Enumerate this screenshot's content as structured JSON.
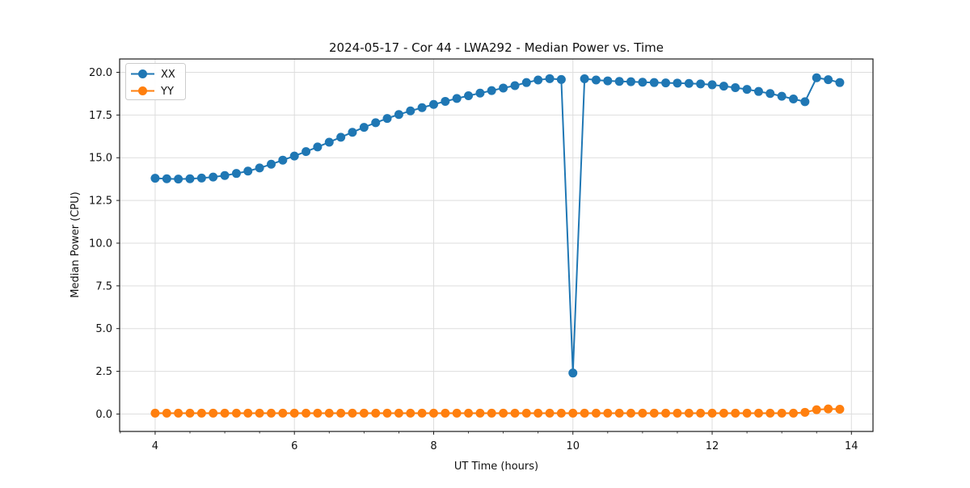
{
  "chart_data": {
    "type": "line",
    "title": "2024-05-17 - Cor 44 - LWA292 - Median Power vs. Time",
    "xlabel": "UT Time (hours)",
    "ylabel": "Median Power (CPU)",
    "xlim": [
      3.49,
      14.31
    ],
    "ylim": [
      -1.02,
      20.78
    ],
    "grid": true,
    "legend_position": "upper left",
    "x_tick_values": [
      4,
      6,
      8,
      10,
      12,
      14
    ],
    "x_tick_labels": [
      "4",
      "6",
      "8",
      "10",
      "12",
      "14"
    ],
    "x_minor_tick_step": 0.5,
    "y_tick_values": [
      0.0,
      2.5,
      5.0,
      7.5,
      10.0,
      12.5,
      15.0,
      17.5,
      20.0
    ],
    "y_tick_labels": [
      "0.0",
      "2.5",
      "5.0",
      "7.5",
      "10.0",
      "12.5",
      "15.0",
      "17.5",
      "20.0"
    ],
    "x": [
      4.0,
      4.167,
      4.333,
      4.5,
      4.667,
      4.833,
      5.0,
      5.167,
      5.333,
      5.5,
      5.667,
      5.833,
      6.0,
      6.167,
      6.333,
      6.5,
      6.667,
      6.833,
      7.0,
      7.167,
      7.333,
      7.5,
      7.667,
      7.833,
      8.0,
      8.167,
      8.333,
      8.5,
      8.667,
      8.833,
      9.0,
      9.167,
      9.333,
      9.5,
      9.667,
      9.833,
      10.0,
      10.167,
      10.333,
      10.5,
      10.667,
      10.833,
      11.0,
      11.167,
      11.333,
      11.5,
      11.667,
      11.833,
      12.0,
      12.167,
      12.333,
      12.5,
      12.667,
      12.833,
      13.0,
      13.167,
      13.333,
      13.5,
      13.667,
      13.833
    ],
    "series": [
      {
        "name": "XX",
        "color": "#1f77b4",
        "values": [
          13.8,
          13.77,
          13.75,
          13.77,
          13.81,
          13.87,
          13.96,
          14.08,
          14.22,
          14.4,
          14.62,
          14.86,
          15.1,
          15.36,
          15.63,
          15.91,
          16.2,
          16.49,
          16.78,
          17.05,
          17.3,
          17.53,
          17.74,
          17.93,
          18.12,
          18.3,
          18.47,
          18.63,
          18.78,
          18.93,
          19.08,
          19.22,
          19.4,
          19.55,
          19.63,
          19.58,
          2.4,
          19.62,
          19.55,
          19.5,
          19.47,
          19.45,
          19.42,
          19.4,
          19.38,
          19.37,
          19.35,
          19.32,
          19.27,
          19.19,
          19.1,
          19.0,
          18.88,
          18.76,
          18.6,
          18.44,
          18.28,
          19.68,
          19.57,
          19.4
        ]
      },
      {
        "name": "YY",
        "color": "#ff7f0e",
        "values": [
          0.05,
          0.05,
          0.05,
          0.05,
          0.05,
          0.05,
          0.05,
          0.05,
          0.05,
          0.05,
          0.05,
          0.05,
          0.05,
          0.05,
          0.05,
          0.05,
          0.05,
          0.05,
          0.05,
          0.05,
          0.05,
          0.05,
          0.05,
          0.05,
          0.05,
          0.05,
          0.05,
          0.05,
          0.05,
          0.05,
          0.05,
          0.05,
          0.05,
          0.05,
          0.05,
          0.05,
          0.05,
          0.05,
          0.05,
          0.05,
          0.05,
          0.05,
          0.05,
          0.05,
          0.05,
          0.05,
          0.05,
          0.05,
          0.05,
          0.05,
          0.05,
          0.05,
          0.05,
          0.05,
          0.05,
          0.05,
          0.1,
          0.25,
          0.3,
          0.28
        ]
      }
    ],
    "annotations": {
      "dip_point": {
        "x": 10.0,
        "y": 2.4,
        "series": "XX"
      }
    }
  },
  "colors": {
    "grid": "#dddddd",
    "spine": "#1a1a1a",
    "legend_border": "#cccccc",
    "background": "#ffffff"
  }
}
